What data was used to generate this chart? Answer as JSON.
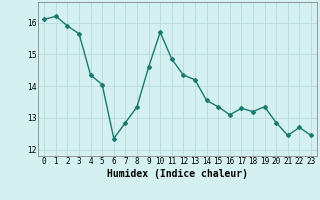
{
  "x": [
    0,
    1,
    2,
    3,
    4,
    5,
    6,
    7,
    8,
    9,
    10,
    11,
    12,
    13,
    14,
    15,
    16,
    17,
    18,
    19,
    20,
    21,
    22,
    23
  ],
  "y": [
    16.1,
    16.2,
    15.9,
    15.65,
    14.35,
    14.05,
    12.35,
    12.85,
    13.35,
    14.6,
    15.7,
    14.85,
    14.35,
    14.2,
    13.55,
    13.35,
    13.1,
    13.3,
    13.2,
    13.35,
    12.85,
    12.45,
    12.7,
    12.45
  ],
  "xlabel": "Humidex (Indice chaleur)",
  "line_color": "#1a7a6e",
  "marker": "D",
  "marker_size": 2,
  "bg_color": "#d4f0f0",
  "grid_color": "#b8dada",
  "xlim": [
    -0.5,
    23.5
  ],
  "ylim": [
    11.8,
    16.65
  ],
  "yticks": [
    12,
    13,
    14,
    15,
    16
  ],
  "xticks": [
    0,
    1,
    2,
    3,
    4,
    5,
    6,
    7,
    8,
    9,
    10,
    11,
    12,
    13,
    14,
    15,
    16,
    17,
    18,
    19,
    20,
    21,
    22,
    23
  ],
  "xtick_labels": [
    "0",
    "1",
    "2",
    "3",
    "4",
    "5",
    "6",
    "7",
    "8",
    "9",
    "10",
    "11",
    "12",
    "13",
    "14",
    "15",
    "16",
    "17",
    "18",
    "19",
    "20",
    "21",
    "22",
    "23"
  ],
  "tick_fontsize": 5.5,
  "xlabel_fontsize": 7,
  "line_width": 1.0,
  "spine_color": "#888888"
}
